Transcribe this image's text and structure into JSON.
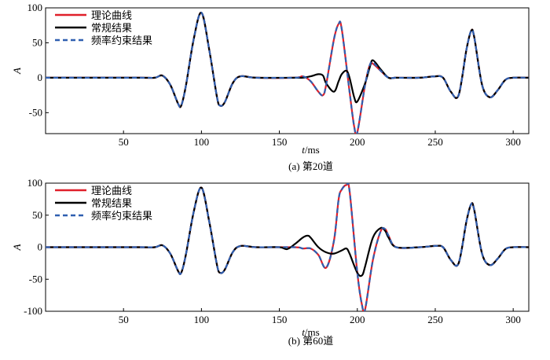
{
  "colors": {
    "theory": "#e0202a",
    "conventional": "#000000",
    "constrained": "#2f5fb0"
  },
  "chart_data": [
    {
      "type": "line",
      "caption": "(a) 第20道",
      "xlabel_italic": "t",
      "xlabel_unit": "/ms",
      "ylabel": "A",
      "xlim": [
        0,
        310
      ],
      "ylim": [
        -80,
        100
      ],
      "xticks": [
        50,
        100,
        150,
        200,
        250,
        300
      ],
      "yticks": [
        100,
        50,
        0,
        -50
      ],
      "legend_position": "top-left",
      "series": [
        {
          "name": "理论曲线",
          "style": "solid",
          "color": "#e0202a",
          "x": [
            0,
            60,
            70,
            75,
            80,
            85,
            87,
            90,
            95,
            100,
            105,
            110,
            112,
            115,
            120,
            125,
            135,
            160,
            165,
            170,
            175,
            178,
            180,
            185,
            188,
            190,
            195,
            198,
            200,
            205,
            208,
            210,
            215,
            220,
            225,
            240,
            250,
            255,
            260,
            265,
            270,
            273,
            275,
            280,
            285,
            290,
            295,
            300,
            310
          ],
          "y": [
            0,
            0,
            0,
            3,
            -10,
            -37,
            -40,
            -12,
            55,
            93,
            40,
            -28,
            -40,
            -35,
            -8,
            2,
            0,
            0,
            2,
            -5,
            -20,
            -25,
            -10,
            55,
            77,
            70,
            -20,
            -70,
            -78,
            -10,
            18,
            20,
            10,
            0,
            0,
            0,
            2,
            0,
            -20,
            -25,
            40,
            67,
            58,
            -10,
            -28,
            -18,
            -3,
            0,
            0
          ]
        },
        {
          "name": "常规结果",
          "style": "solid",
          "color": "#000000",
          "x": [
            0,
            60,
            70,
            75,
            80,
            85,
            87,
            90,
            95,
            100,
            105,
            110,
            112,
            115,
            120,
            125,
            135,
            160,
            165,
            170,
            175,
            178,
            180,
            185,
            188,
            190,
            193,
            195,
            198,
            200,
            205,
            208,
            210,
            215,
            220,
            225,
            240,
            250,
            255,
            260,
            265,
            270,
            273,
            275,
            280,
            285,
            290,
            295,
            300,
            310
          ],
          "y": [
            0,
            0,
            0,
            3,
            -10,
            -37,
            -40,
            -12,
            55,
            93,
            40,
            -28,
            -40,
            -35,
            -8,
            2,
            0,
            0,
            0,
            2,
            5,
            3,
            -8,
            -20,
            -5,
            5,
            10,
            0,
            -28,
            -34,
            -8,
            15,
            25,
            12,
            0,
            0,
            0,
            2,
            0,
            -20,
            -25,
            40,
            67,
            58,
            -10,
            -28,
            -18,
            -3,
            0,
            0
          ]
        },
        {
          "name": "频率约束结果",
          "style": "dashed",
          "color": "#2f5fb0",
          "x": [
            0,
            60,
            70,
            75,
            80,
            85,
            87,
            90,
            95,
            100,
            105,
            110,
            112,
            115,
            120,
            125,
            135,
            160,
            165,
            170,
            175,
            178,
            180,
            185,
            188,
            190,
            195,
            198,
            200,
            205,
            208,
            210,
            215,
            220,
            225,
            240,
            250,
            255,
            260,
            265,
            270,
            273,
            275,
            280,
            285,
            290,
            295,
            300,
            310
          ],
          "y": [
            0,
            0,
            0,
            3,
            -10,
            -37,
            -40,
            -12,
            55,
            93,
            40,
            -28,
            -40,
            -35,
            -8,
            2,
            0,
            0,
            2,
            -5,
            -20,
            -25,
            -10,
            55,
            77,
            70,
            -20,
            -70,
            -78,
            -10,
            18,
            22,
            10,
            0,
            0,
            0,
            2,
            0,
            -20,
            -25,
            40,
            67,
            58,
            -10,
            -28,
            -18,
            -3,
            0,
            0
          ]
        }
      ]
    },
    {
      "type": "line",
      "caption": "(b) 第60道",
      "xlabel_italic": "t",
      "xlabel_unit": "/ms",
      "ylabel": "A",
      "xlim": [
        0,
        310
      ],
      "ylim": [
        -100,
        100
      ],
      "xticks": [
        50,
        100,
        150,
        200,
        250,
        300
      ],
      "yticks": [
        100,
        50,
        0,
        -50,
        -100
      ],
      "legend_position": "top-left",
      "series": [
        {
          "name": "理论曲线",
          "style": "solid",
          "color": "#e0202a",
          "x": [
            0,
            60,
            70,
            75,
            80,
            85,
            87,
            90,
            95,
            100,
            105,
            110,
            112,
            115,
            120,
            125,
            135,
            160,
            165,
            170,
            175,
            180,
            185,
            188,
            190,
            193,
            195,
            200,
            203,
            205,
            210,
            215,
            218,
            220,
            225,
            240,
            250,
            255,
            260,
            265,
            270,
            273,
            275,
            280,
            285,
            290,
            295,
            300,
            310
          ],
          "y": [
            0,
            0,
            0,
            3,
            -10,
            -37,
            -40,
            -12,
            55,
            93,
            40,
            -28,
            -40,
            -35,
            -8,
            2,
            0,
            0,
            -2,
            -2,
            -12,
            -32,
            10,
            75,
            90,
            97,
            88,
            -40,
            -90,
            -97,
            -20,
            25,
            28,
            18,
            0,
            0,
            2,
            0,
            -20,
            -25,
            40,
            67,
            58,
            -10,
            -28,
            -18,
            -3,
            0,
            0
          ]
        },
        {
          "name": "常规结果",
          "style": "solid",
          "color": "#000000",
          "x": [
            0,
            60,
            70,
            75,
            80,
            85,
            87,
            90,
            95,
            100,
            105,
            110,
            112,
            115,
            120,
            125,
            135,
            150,
            155,
            160,
            165,
            168,
            170,
            175,
            180,
            185,
            190,
            193,
            195,
            200,
            203,
            205,
            210,
            215,
            218,
            220,
            225,
            240,
            250,
            255,
            260,
            265,
            270,
            273,
            275,
            280,
            285,
            290,
            295,
            300,
            310
          ],
          "y": [
            0,
            0,
            0,
            3,
            -10,
            -37,
            -40,
            -12,
            55,
            93,
            40,
            -28,
            -40,
            -35,
            -8,
            2,
            0,
            0,
            -3,
            5,
            15,
            18,
            15,
            0,
            -8,
            -10,
            -5,
            -2,
            -10,
            -40,
            -44,
            -30,
            15,
            30,
            25,
            15,
            0,
            0,
            2,
            0,
            -20,
            -25,
            40,
            67,
            58,
            -10,
            -28,
            -18,
            -3,
            0,
            0
          ]
        },
        {
          "name": "频率约束结果",
          "style": "dashed",
          "color": "#2f5fb0",
          "x": [
            0,
            60,
            70,
            75,
            80,
            85,
            87,
            90,
            95,
            100,
            105,
            110,
            112,
            115,
            120,
            125,
            135,
            160,
            165,
            170,
            175,
            180,
            185,
            188,
            190,
            193,
            195,
            200,
            203,
            205,
            210,
            215,
            218,
            220,
            225,
            240,
            250,
            255,
            260,
            265,
            270,
            273,
            275,
            280,
            285,
            290,
            295,
            300,
            310
          ],
          "y": [
            0,
            0,
            0,
            3,
            -10,
            -37,
            -40,
            -12,
            55,
            93,
            40,
            -28,
            -40,
            -35,
            -8,
            2,
            0,
            0,
            -2,
            -2,
            -12,
            -32,
            10,
            75,
            90,
            97,
            88,
            -40,
            -90,
            -97,
            -20,
            25,
            28,
            18,
            0,
            0,
            2,
            0,
            -20,
            -25,
            40,
            67,
            58,
            -10,
            -28,
            -18,
            -3,
            0,
            0
          ]
        }
      ]
    }
  ]
}
